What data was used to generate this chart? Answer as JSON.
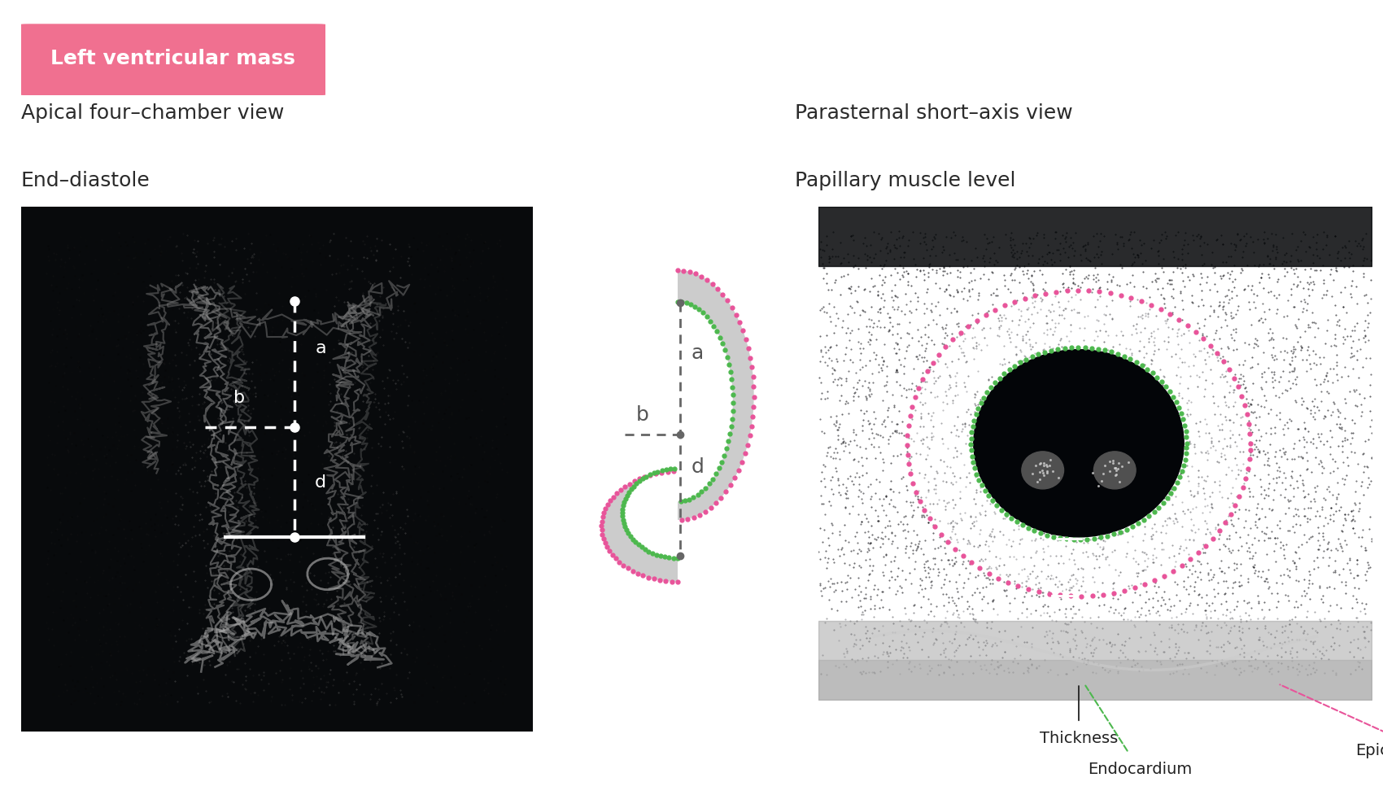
{
  "title_badge_text": "Left ventricular mass",
  "title_badge_bg": "#f07090",
  "title_badge_text_color": "#ffffff",
  "left_title_line1": "Apical four–chamber view",
  "left_title_line2": "End–diastole",
  "right_title_line1": "Parasternal short–axis view",
  "right_title_line2": "Papillary muscle level",
  "text_color": "#2a2a2a",
  "pink_color": "#e8549a",
  "green_color": "#4db84e",
  "gray_color": "#888888",
  "white_color": "#ffffff",
  "bg_color": "#ffffff",
  "diagram_fill": "#cccccc",
  "annotation_color": "#222222",
  "badge_gradient_left": "#f07090",
  "badge_gradient_right": "#e85080"
}
